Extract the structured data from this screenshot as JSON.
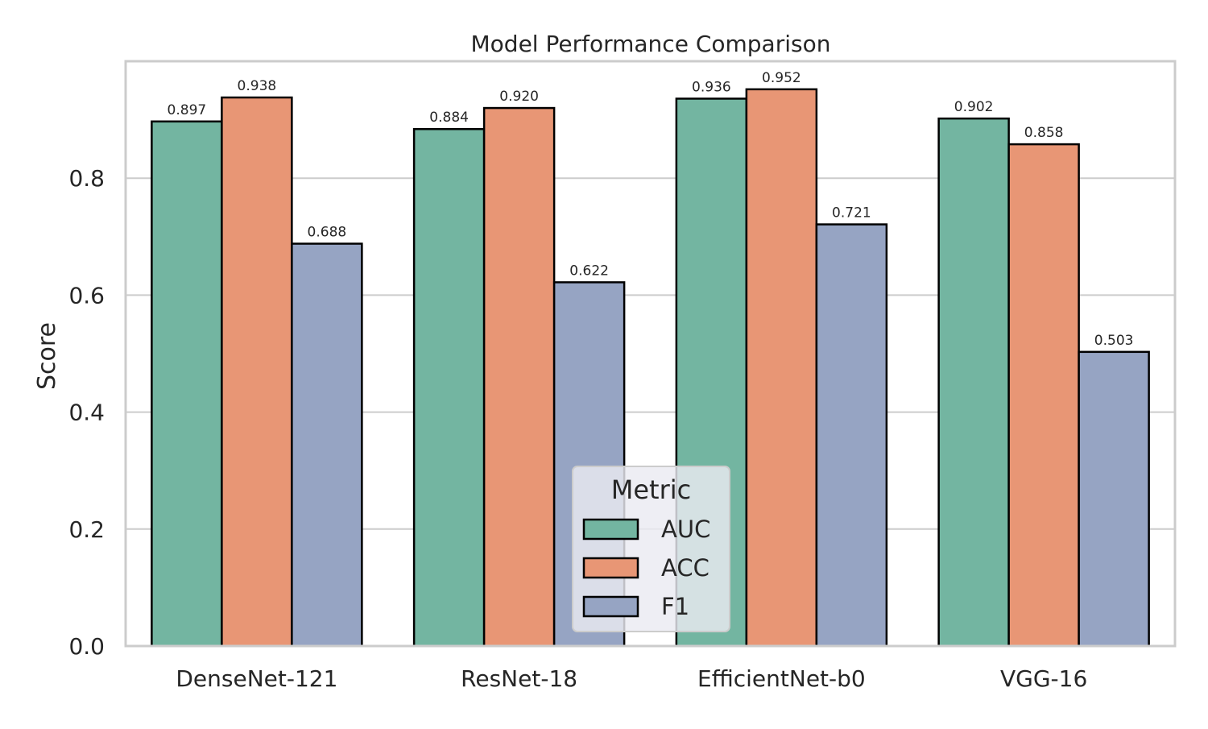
{
  "chart_data": {
    "type": "bar",
    "title": "Model Performance Comparison",
    "xlabel": "",
    "ylabel": "Score",
    "categories": [
      "DenseNet-121",
      "ResNet-18",
      "EfficientNet-b0",
      "VGG-16"
    ],
    "series": [
      {
        "name": "AUC",
        "color": "#73b5a1",
        "values": [
          0.897,
          0.884,
          0.936,
          0.902
        ]
      },
      {
        "name": "ACC",
        "color": "#e89675",
        "values": [
          0.938,
          0.92,
          0.952,
          0.858
        ]
      },
      {
        "name": "F1",
        "color": "#96a4c3",
        "values": [
          0.688,
          0.622,
          0.721,
          0.503
        ]
      }
    ],
    "data_labels": [
      [
        "0.897",
        "0.884",
        "0.936",
        "0.902"
      ],
      [
        "0.938",
        "0.920",
        "0.952",
        "0.858"
      ],
      [
        "0.688",
        "0.622",
        "0.721",
        "0.503"
      ]
    ],
    "ylim": [
      0,
      1.0
    ],
    "yticks": [
      "0.0",
      "0.2",
      "0.4",
      "0.6",
      "0.8"
    ],
    "grid": "horizontal",
    "legend": {
      "title": "Metric",
      "placement": "bottom-center"
    },
    "colors": {
      "edge": "#000000",
      "grid": "#cccccc",
      "frame": "#cccccc",
      "legend_bg": "#eaeaf2"
    }
  }
}
